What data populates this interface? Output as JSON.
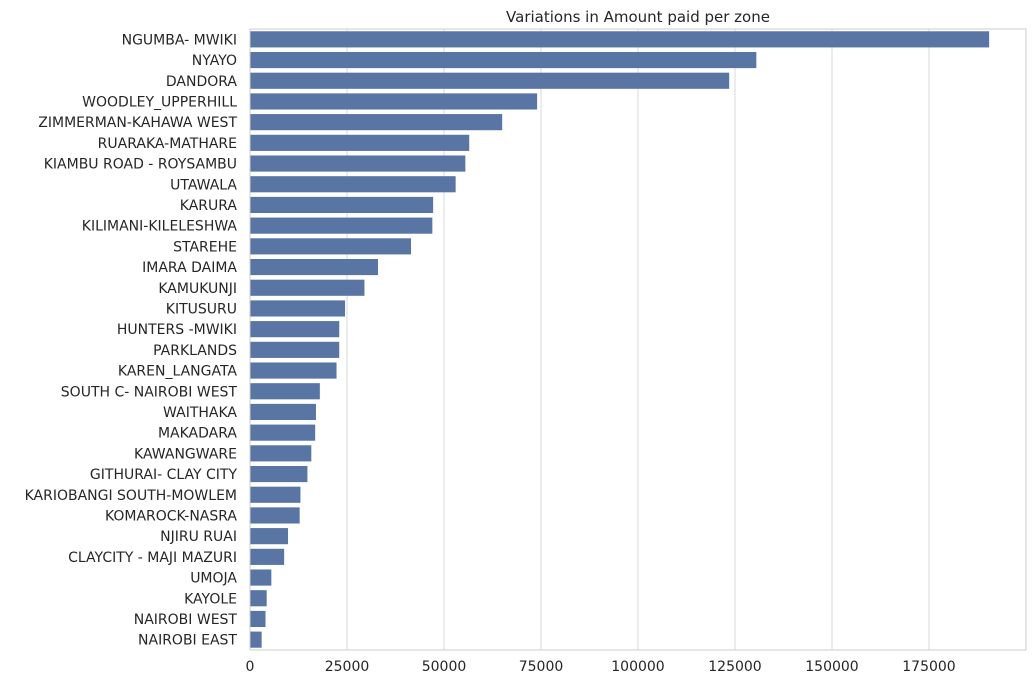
{
  "chart_data": {
    "type": "bar",
    "orientation": "horizontal",
    "title": "Variations in Amount paid per zone",
    "xlabel": "",
    "ylabel": "",
    "xlim": [
      0,
      200000
    ],
    "xticks": [
      0,
      25000,
      50000,
      75000,
      100000,
      125000,
      150000,
      175000
    ],
    "grid": "vertical",
    "bar_color": "#5875a4",
    "categories": [
      "NGUMBA- MWIKI",
      "NYAYO",
      "DANDORA",
      "WOODLEY_UPPERHILL",
      "ZIMMERMAN-KAHAWA WEST",
      "RUARAKA-MATHARE",
      "KIAMBU ROAD - ROYSAMBU",
      "UTAWALA",
      "KARURA",
      "KILIMANI-KILELESHWA",
      "STAREHE",
      "IMARA DAIMA",
      "KAMUKUNJI",
      "KITUSURU",
      "HUNTERS -MWIKI",
      "PARKLANDS",
      "KAREN_LANGATA",
      "SOUTH C- NAIROBI WEST",
      "WAITHAKA",
      "MAKADARA",
      "KAWANGWARE",
      "GITHURAI- CLAY CITY",
      "KARIOBANGI SOUTH-MOWLEM",
      "KOMAROCK-NASRA",
      "NJIRU RUAI",
      "CLAYCITY - MAJI MAZURI",
      "UMOJA",
      "KAYOLE",
      "NAIROBI WEST",
      "NAIROBI EAST"
    ],
    "values": [
      190500,
      130500,
      123500,
      74000,
      65000,
      56500,
      55500,
      53000,
      47200,
      47000,
      41500,
      33000,
      29500,
      24500,
      23000,
      23000,
      22300,
      18000,
      17000,
      16800,
      15800,
      14800,
      13000,
      12800,
      9800,
      8800,
      5500,
      4300,
      4000,
      3000
    ]
  }
}
